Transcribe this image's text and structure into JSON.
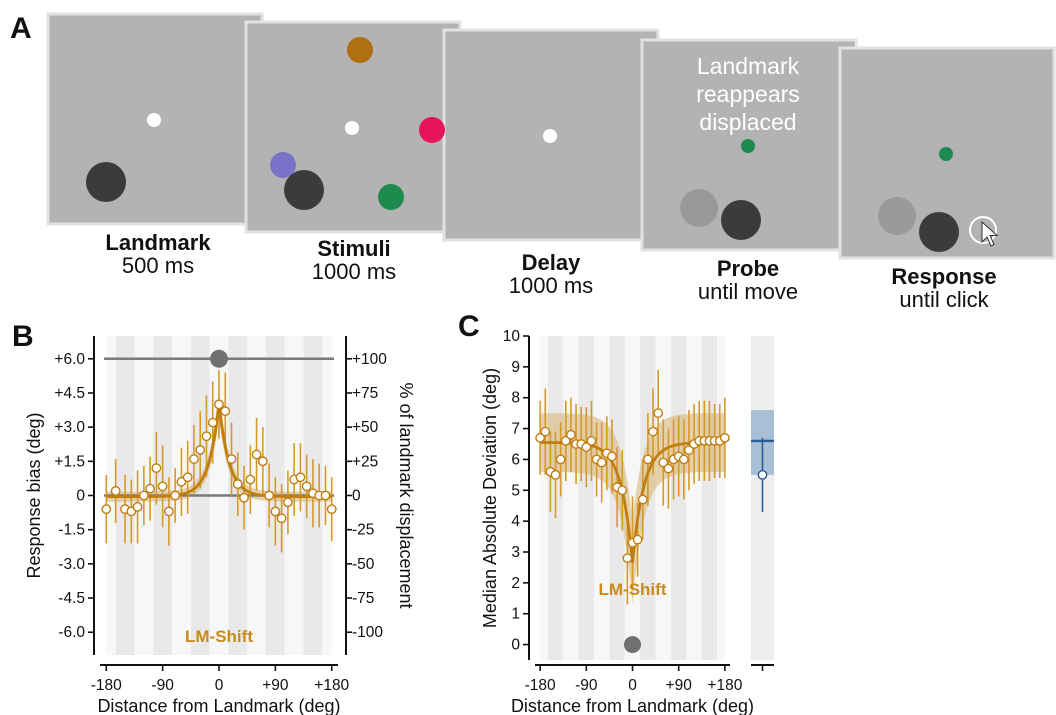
{
  "panel_a": {
    "label": "A",
    "screens": [
      {
        "title": "Landmark",
        "duration": "500 ms"
      },
      {
        "title": "Stimuli",
        "duration": "1000 ms"
      },
      {
        "title": "Delay",
        "duration": "1000 ms"
      },
      {
        "title": "Probe",
        "duration": "until move",
        "message": [
          "Landmark",
          "reappears",
          "displaced"
        ]
      },
      {
        "title": "Response",
        "duration": "until click"
      }
    ],
    "colors": {
      "screen": "#b3b3b3",
      "landmark": "#3b3b3b",
      "fixation": "#ffffff",
      "brown": "#b06f12",
      "pink": "#e8145a",
      "purple": "#7a72c8",
      "green": "#1f8a4e",
      "ghost": "#999999"
    }
  },
  "chart_data": [
    {
      "panel": "B",
      "type": "line",
      "xlabel": "Distance from Landmark (deg)",
      "ylabel": "Response bias (deg)",
      "ylabel_right": "% of landmark displacement",
      "xlim": [
        -190,
        190
      ],
      "ylim": [
        -7,
        7
      ],
      "x_ticks": [
        "-180",
        "-90",
        "0",
        "+90",
        "+180"
      ],
      "y_ticks": [
        "+6.0",
        "+4.5",
        "+3.0",
        "+1.5",
        "0",
        "-1.5",
        "-3.0",
        "-4.5",
        "-6.0"
      ],
      "y_ticks_right": [
        "+100",
        "+75",
        "+50",
        "+25",
        "0",
        "-25",
        "-50",
        "-75",
        "-100"
      ],
      "annotation": "LM-Shift",
      "reference_line_y": 6.0,
      "landmark_marker": {
        "x": 0,
        "y": 6.0
      },
      "series": [
        {
          "x": [
            -180,
            -165,
            -150,
            -140,
            -130,
            -120,
            -110,
            -100,
            -90,
            -80,
            -70,
            -60,
            -50,
            -40,
            -30,
            -20,
            -10,
            0,
            10,
            20,
            30,
            40,
            50,
            60,
            70,
            80,
            90,
            100,
            110,
            120,
            130,
            140,
            150,
            160,
            170,
            180
          ],
          "y": [
            -0.6,
            0.2,
            -0.6,
            -0.7,
            -0.5,
            0.0,
            0.3,
            1.2,
            0.4,
            -0.7,
            0.0,
            0.6,
            0.8,
            1.6,
            2.0,
            2.6,
            3.2,
            4.0,
            3.7,
            1.6,
            0.5,
            -0.1,
            0.7,
            1.8,
            1.5,
            0.0,
            -0.7,
            -1.0,
            -0.3,
            0.7,
            0.8,
            0.4,
            0.1,
            0.0,
            0.0,
            -0.6
          ],
          "err": [
            1.5,
            1.4,
            1.5,
            1.4,
            1.6,
            1.3,
            1.4,
            1.6,
            1.8,
            1.5,
            1.2,
            1.5,
            1.6,
            1.5,
            1.7,
            1.8,
            1.8,
            1.5,
            1.7,
            1.6,
            1.4,
            1.4,
            1.5,
            1.6,
            1.5,
            1.4,
            1.5,
            1.5,
            1.4,
            1.6,
            1.5,
            1.4,
            1.5,
            1.4,
            1.3,
            1.4
          ]
        }
      ],
      "fit": {
        "baseline": -0.05,
        "amplitude": 4.1,
        "width_deg": 16
      }
    },
    {
      "panel": "C",
      "type": "line",
      "xlabel": "Distance from Landmark (deg)",
      "ylabel": "Median Absolute Deviation (deg)",
      "xlim": [
        -190,
        190
      ],
      "ylim": [
        -0.5,
        10
      ],
      "x_ticks": [
        "-180",
        "-90",
        "0",
        "+90",
        "+180"
      ],
      "y_ticks": [
        "10",
        "9",
        "8",
        "7",
        "6",
        "5",
        "4",
        "3",
        "2",
        "1",
        "0"
      ],
      "annotation": "LM-Shift",
      "landmark_marker": {
        "x": 0,
        "y": 0
      },
      "series": [
        {
          "x": [
            -180,
            -170,
            -160,
            -150,
            -140,
            -130,
            -120,
            -110,
            -100,
            -90,
            -80,
            -70,
            -60,
            -50,
            -40,
            -30,
            -20,
            -10,
            0,
            10,
            20,
            30,
            40,
            50,
            60,
            70,
            80,
            90,
            100,
            110,
            120,
            130,
            140,
            150,
            160,
            170,
            180
          ],
          "y": [
            6.7,
            6.9,
            5.6,
            5.5,
            6.0,
            6.6,
            6.8,
            6.5,
            6.5,
            6.4,
            6.6,
            6.0,
            5.9,
            6.2,
            6.1,
            5.1,
            5.0,
            2.8,
            3.3,
            3.4,
            4.7,
            6.0,
            6.9,
            7.5,
            5.9,
            5.7,
            6.0,
            6.1,
            6.0,
            6.3,
            6.5,
            6.6,
            6.6,
            6.6,
            6.6,
            6.6,
            6.7
          ],
          "err": [
            1.2,
            1.4,
            1.3,
            1.4,
            1.2,
            1.3,
            1.2,
            1.3,
            1.2,
            1.3,
            1.3,
            1.2,
            1.3,
            1.2,
            1.2,
            1.3,
            1.3,
            1.5,
            1.5,
            1.2,
            1.3,
            1.5,
            1.4,
            1.4,
            1.4,
            1.3,
            1.3,
            1.3,
            1.3,
            1.3,
            1.3,
            1.3,
            1.3,
            1.3,
            1.2,
            1.2,
            1.3
          ]
        }
      ],
      "fit": {
        "baseline": 6.55,
        "depth": 3.9,
        "width_deg": 22
      },
      "control": {
        "x_tick": "",
        "mean": 5.5,
        "err": 1.2,
        "band": [
          5.5,
          7.6
        ],
        "line": 6.6
      }
    }
  ]
}
